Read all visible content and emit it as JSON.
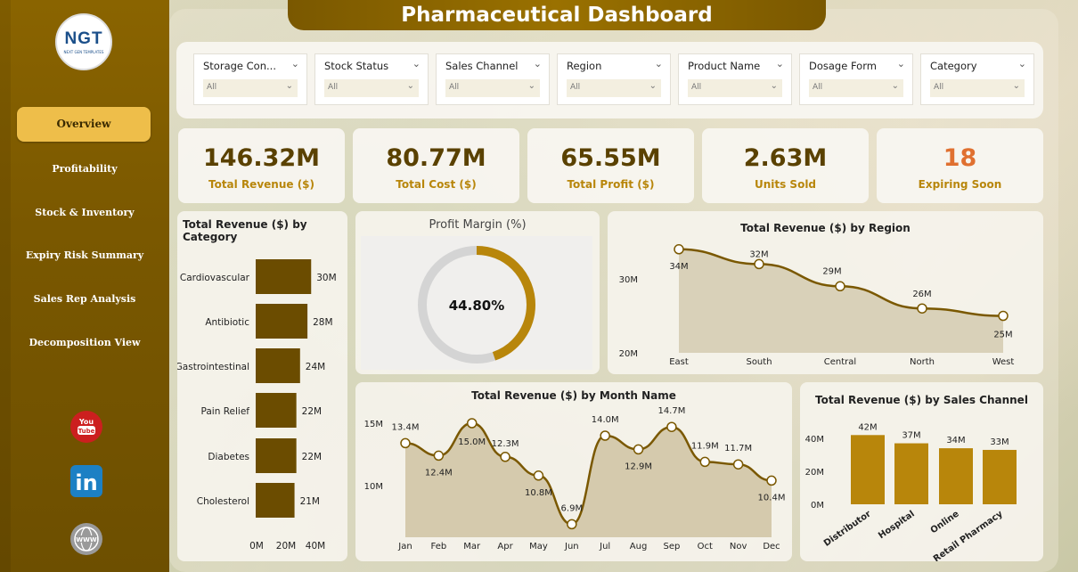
{
  "header": {
    "title": "Pharmaceutical Dashboard"
  },
  "logo": {
    "text": "NGT",
    "subtext": "NEXT GEN TEMPLATES"
  },
  "sidebar": {
    "items": [
      {
        "label": "Overview",
        "active": true
      },
      {
        "label": "Profitability"
      },
      {
        "label": "Stock & Inventory"
      },
      {
        "label": "Expiry Risk Summary"
      },
      {
        "label": "Sales Rep Analysis"
      },
      {
        "label": "Decomposition View"
      }
    ],
    "social": [
      {
        "icon": "youtube-icon",
        "label": "You Tube"
      },
      {
        "icon": "linkedin-icon",
        "label": "in"
      },
      {
        "icon": "website-icon",
        "label": "WWW"
      }
    ]
  },
  "filters": [
    {
      "label": "Storage Con...",
      "value": "All"
    },
    {
      "label": "Stock Status",
      "value": "All"
    },
    {
      "label": "Sales Channel",
      "value": "All"
    },
    {
      "label": "Region",
      "value": "All"
    },
    {
      "label": "Product Name",
      "value": "All"
    },
    {
      "label": "Dosage Form",
      "value": "All"
    },
    {
      "label": "Category",
      "value": "All"
    }
  ],
  "kpis": [
    {
      "value": "146.32M",
      "label": "Total Revenue ($)"
    },
    {
      "value": "80.77M",
      "label": "Total Cost ($)"
    },
    {
      "value": "65.55M",
      "label": "Total Profit ($)"
    },
    {
      "value": "2.63M",
      "label": "Units Sold"
    },
    {
      "value": "18",
      "label": "Expiring Soon",
      "accent": "#e07030"
    }
  ],
  "colors": {
    "primary": "#7a5800",
    "bar_dark": "#6b4c00",
    "bar_gold": "#b8860b",
    "accent": "#eebe4a"
  },
  "chart_data": [
    {
      "type": "bar",
      "orientation": "horizontal",
      "title": "Total Revenue ($) by Category",
      "categories": [
        "Cardiovascular",
        "Antibiotic",
        "Gastrointestinal",
        "Pain Relief",
        "Diabetes",
        "Cholesterol"
      ],
      "values": [
        30,
        28,
        24,
        22,
        22,
        21
      ],
      "data_labels": [
        "30M",
        "28M",
        "24M",
        "22M",
        "22M",
        "21M"
      ],
      "x_ticks": [
        "0M",
        "20M",
        "40M"
      ],
      "xlim": [
        0,
        40
      ]
    },
    {
      "type": "pie",
      "title": "Profit Margin (%)",
      "value": 44.8,
      "label": "44.80%"
    },
    {
      "type": "area",
      "title": "Total Revenue ($) by Region",
      "categories": [
        "East",
        "South",
        "Central",
        "North",
        "West"
      ],
      "values": [
        34,
        32,
        29,
        26,
        25
      ],
      "data_labels": [
        "34M",
        "32M",
        "29M",
        "26M",
        "25M"
      ],
      "y_ticks": [
        "30M",
        "20M"
      ],
      "ylim": [
        20,
        35
      ]
    },
    {
      "type": "area",
      "title": "Total Revenue ($) by Month Name",
      "categories": [
        "Jan",
        "Feb",
        "Mar",
        "Apr",
        "May",
        "Jun",
        "Jul",
        "Aug",
        "Sep",
        "Oct",
        "Nov",
        "Dec"
      ],
      "values": [
        13.4,
        12.4,
        15.0,
        12.3,
        10.8,
        6.9,
        14.0,
        12.9,
        14.7,
        11.9,
        11.7,
        10.4
      ],
      "data_labels": [
        "13.4M",
        "12.4M",
        "15.0M",
        "12.3M",
        "10.8M",
        "6.9M",
        "14.0M",
        "12.9M",
        "14.7M",
        "11.9M",
        "11.7M",
        "10.4M"
      ],
      "y_ticks": [
        "15M",
        "10M"
      ],
      "ylim": [
        6,
        16
      ]
    },
    {
      "type": "bar",
      "title": "Total Revenue ($) by Sales Channel",
      "categories": [
        "Distributor",
        "Hospital",
        "Online",
        "Retail Pharmacy"
      ],
      "values": [
        42,
        37,
        34,
        33
      ],
      "data_labels": [
        "42M",
        "37M",
        "34M",
        "33M"
      ],
      "y_ticks": [
        "40M",
        "20M",
        "0M"
      ],
      "ylim": [
        0,
        50
      ]
    }
  ]
}
